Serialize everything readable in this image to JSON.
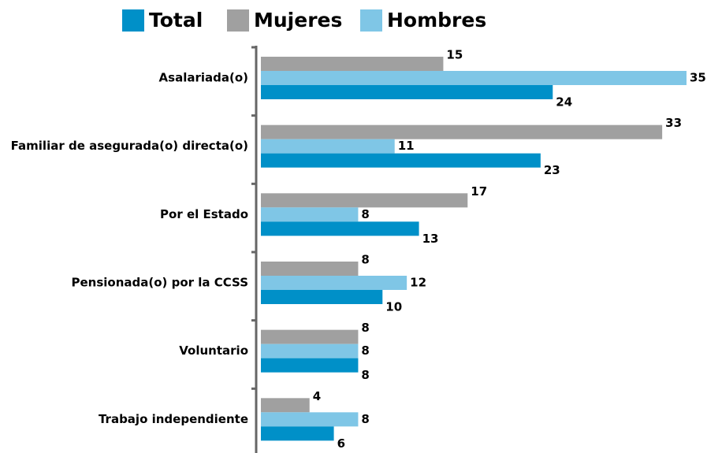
{
  "chart_data": {
    "type": "bar",
    "orientation": "horizontal",
    "categories": [
      "Asalariada(o)",
      "Familiar de asegurada(o) directa(o)",
      "Por el Estado",
      "Pensionada(o) por la CCSS",
      "Voluntario",
      "Trabajo independiente"
    ],
    "series": [
      {
        "name": "Total",
        "color": "#0090c8",
        "values": [
          24,
          23,
          13,
          10,
          8,
          6
        ]
      },
      {
        "name": "Mujeres",
        "color": "#a0a0a0",
        "values": [
          15,
          33,
          17,
          8,
          8,
          4
        ]
      },
      {
        "name": "Hombres",
        "color": "#7fc6e6",
        "values": [
          35,
          11,
          8,
          12,
          8,
          8
        ]
      }
    ],
    "xlim": [
      0,
      35
    ],
    "legend": "top"
  }
}
